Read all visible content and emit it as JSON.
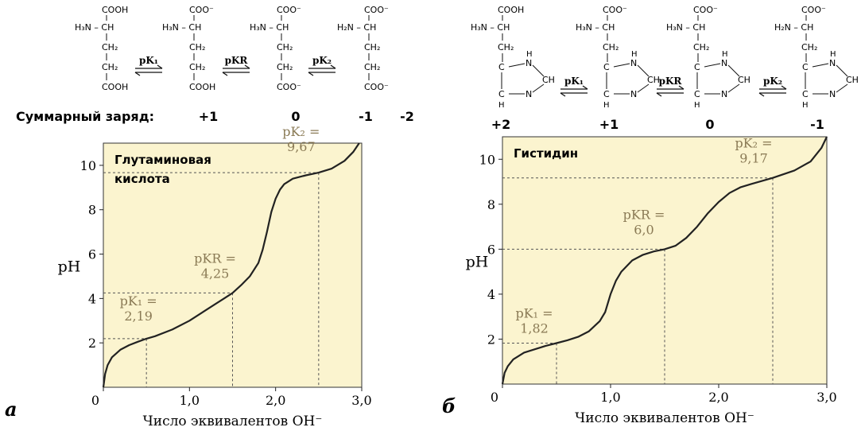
{
  "charge_label": "Суммарный заряд:",
  "colors": {
    "plot_bg": "#fbf4cf",
    "curve": "#222222",
    "guide": "#555555",
    "pk_label": "#8a7a55"
  },
  "glutamate": {
    "species": [
      {
        "top": "COOH",
        "amine": "H₃N – CH",
        "chain": [
          "CH₂",
          "CH₂"
        ],
        "bottom": "COOH",
        "charge": "+1"
      },
      {
        "top": "COO⁻",
        "amine": "H₃N – CH",
        "chain": [
          "CH₂",
          "CH₂"
        ],
        "bottom": "COOH",
        "charge": "0"
      },
      {
        "top": "COO⁻",
        "amine": "H₃N – CH",
        "chain": [
          "CH₂",
          "CH₂"
        ],
        "bottom": "COO⁻",
        "charge": "-1"
      },
      {
        "top": "COO⁻",
        "amine": "H₂N – CH",
        "chain": [
          "CH₂",
          "CH₂"
        ],
        "bottom": "COO⁻",
        "charge": "-2"
      }
    ],
    "equilibria": [
      "pK₁",
      "pKR",
      "pK₂"
    ]
  },
  "histidine": {
    "species": [
      {
        "top": "COOH",
        "amine": "H₃N – CH",
        "chain": [
          "CH₂"
        ],
        "charge": "+2"
      },
      {
        "top": "COO⁻",
        "amine": "H₃N – CH",
        "chain": [
          "CH₂"
        ],
        "charge": "+1"
      },
      {
        "top": "COO⁻",
        "amine": "H₃N – CH",
        "chain": [
          "CH₂"
        ],
        "charge": "0"
      },
      {
        "top": "COO⁻",
        "amine": "H₂N – CH",
        "chain": [
          "CH₂"
        ],
        "charge": "-1"
      }
    ],
    "ring": {
      "nh": "H",
      "n": "N",
      "ch": "CH",
      "c": "C"
    },
    "equilibria": [
      "pK₁",
      "pKR",
      "pK₂"
    ]
  },
  "chart_data": [
    {
      "type": "line",
      "panel_label": "а",
      "title": "Глутаминовая кислота",
      "xlabel": "Число эквивалентов OH⁻",
      "ylabel": "pH",
      "xlim": [
        0,
        3
      ],
      "ylim": [
        0,
        11
      ],
      "x_ticks": [
        "0",
        "1,0",
        "2,0",
        "3,0"
      ],
      "y_ticks": [
        "2",
        "4",
        "6",
        "8",
        "10"
      ],
      "pk_points": [
        {
          "name": "pK₁ =",
          "value": "2,19",
          "x": 0.5,
          "y": 2.19
        },
        {
          "name": "pKR =",
          "value": "4,25",
          "x": 1.5,
          "y": 4.25
        },
        {
          "name": "pK₂ =",
          "value": "9,67",
          "x": 2.5,
          "y": 9.67
        }
      ],
      "curve": {
        "x": [
          0,
          0.02,
          0.05,
          0.1,
          0.2,
          0.3,
          0.4,
          0.5,
          0.6,
          0.8,
          1.0,
          1.2,
          1.4,
          1.5,
          1.6,
          1.7,
          1.8,
          1.85,
          1.9,
          1.95,
          2.0,
          2.05,
          2.1,
          2.2,
          2.35,
          2.5,
          2.65,
          2.8,
          2.9,
          2.97
        ],
        "y": [
          0,
          0.6,
          1.0,
          1.35,
          1.7,
          1.9,
          2.05,
          2.19,
          2.3,
          2.6,
          3.0,
          3.5,
          4.0,
          4.25,
          4.6,
          5.0,
          5.6,
          6.2,
          7.0,
          7.9,
          8.5,
          8.9,
          9.15,
          9.4,
          9.55,
          9.67,
          9.85,
          10.2,
          10.6,
          11.0
        ]
      }
    },
    {
      "type": "line",
      "panel_label": "б",
      "title": "Гистидин",
      "xlabel": "Число эквивалентов OH⁻",
      "ylabel": "pH",
      "xlim": [
        0,
        3
      ],
      "ylim": [
        0,
        11
      ],
      "x_ticks": [
        "0",
        "1,0",
        "2,0",
        "3,0"
      ],
      "y_ticks": [
        "2",
        "4",
        "6",
        "8",
        "10"
      ],
      "pk_points": [
        {
          "name": "pK₁ =",
          "value": "1,82",
          "x": 0.5,
          "y": 1.82
        },
        {
          "name": "pKR =",
          "value": "6,0",
          "x": 1.5,
          "y": 6.0
        },
        {
          "name": "pK₂ =",
          "value": "9,17",
          "x": 2.5,
          "y": 9.17
        }
      ],
      "curve": {
        "x": [
          0,
          0.02,
          0.05,
          0.1,
          0.2,
          0.3,
          0.4,
          0.5,
          0.6,
          0.7,
          0.8,
          0.9,
          0.95,
          1.0,
          1.05,
          1.1,
          1.2,
          1.3,
          1.4,
          1.5,
          1.6,
          1.7,
          1.8,
          1.9,
          2.0,
          2.1,
          2.2,
          2.3,
          2.5,
          2.7,
          2.85,
          2.95,
          3.0
        ],
        "y": [
          0,
          0.5,
          0.8,
          1.1,
          1.4,
          1.55,
          1.7,
          1.82,
          1.95,
          2.1,
          2.35,
          2.8,
          3.2,
          4.0,
          4.6,
          5.0,
          5.5,
          5.75,
          5.9,
          6.0,
          6.15,
          6.5,
          7.0,
          7.6,
          8.1,
          8.5,
          8.75,
          8.9,
          9.17,
          9.5,
          9.9,
          10.5,
          11.0
        ]
      }
    }
  ]
}
